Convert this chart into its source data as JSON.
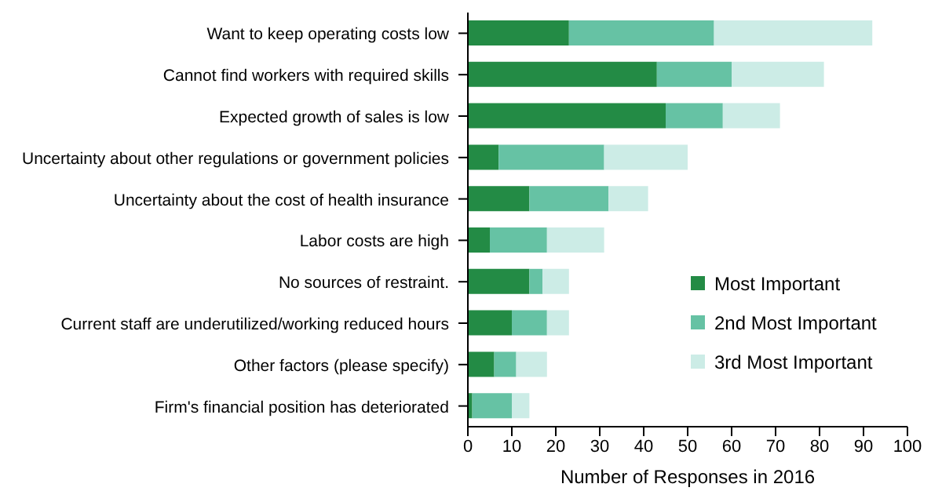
{
  "chart_data": {
    "type": "bar",
    "orientation": "horizontal",
    "stacked": true,
    "xlabel": "Number of Responses in 2016",
    "categories": [
      "Want to keep operating costs low",
      "Cannot find workers with required skills",
      "Expected growth of sales is low",
      "Uncertainty about other regulations or government policies",
      "Uncertainty about the cost of health insurance",
      "Labor costs are high",
      "No sources of restraint.",
      "Current staff are underutilized/working reduced hours",
      "Other factors (please specify)",
      "Firm's financial position has deteriorated"
    ],
    "series": [
      {
        "name": "Most Important",
        "color": "#238b45",
        "values": [
          23,
          43,
          45,
          7,
          14,
          5,
          14,
          10,
          6,
          1
        ]
      },
      {
        "name": "2nd Most Important",
        "color": "#66c2a4",
        "values": [
          33,
          17,
          13,
          24,
          18,
          13,
          3,
          8,
          5,
          9
        ]
      },
      {
        "name": "3rd Most Important",
        "color": "#ccece6",
        "values": [
          36,
          21,
          13,
          19,
          9,
          13,
          6,
          5,
          7,
          4
        ]
      }
    ],
    "xlim": [
      0,
      100
    ],
    "xticks": [
      0,
      10,
      20,
      30,
      40,
      50,
      60,
      70,
      80,
      90,
      100
    ],
    "grid": false,
    "legend": "right"
  }
}
